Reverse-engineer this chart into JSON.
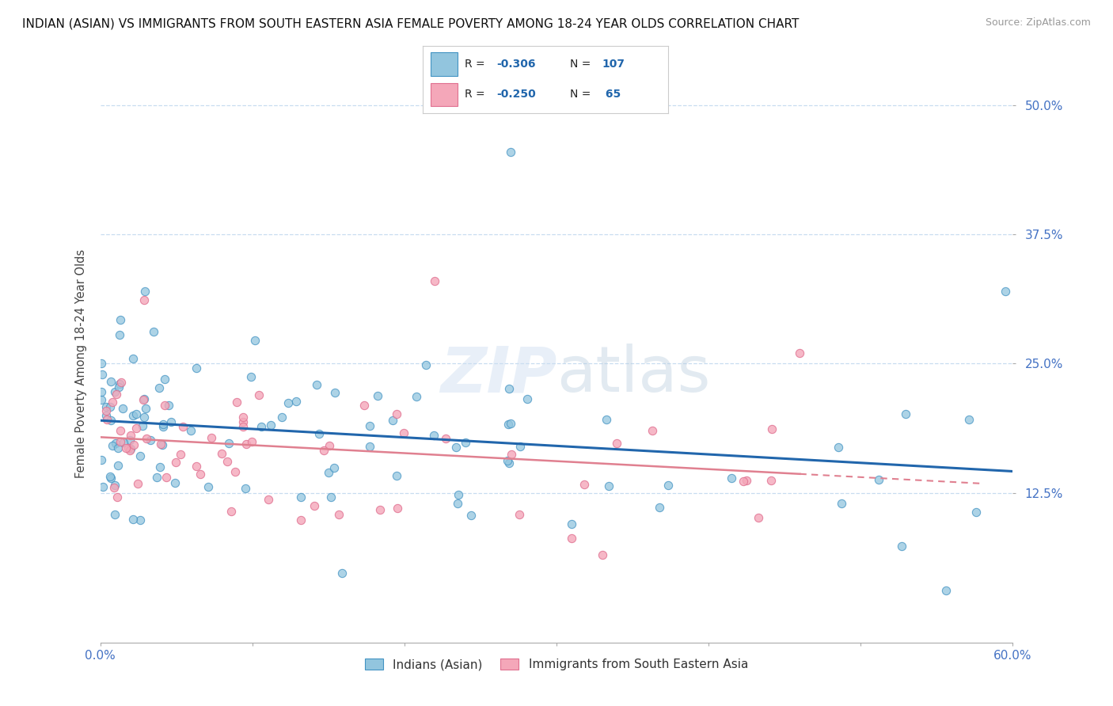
{
  "title": "INDIAN (ASIAN) VS IMMIGRANTS FROM SOUTH EASTERN ASIA FEMALE POVERTY AMONG 18-24 YEAR OLDS CORRELATION CHART",
  "source": "Source: ZipAtlas.com",
  "ylabel": "Female Poverty Among 18-24 Year Olds",
  "xlim": [
    0.0,
    0.6
  ],
  "ylim": [
    -0.02,
    0.52
  ],
  "yticks": [
    0.125,
    0.25,
    0.375,
    0.5
  ],
  "ytick_labels": [
    "12.5%",
    "25.0%",
    "37.5%",
    "50.0%"
  ],
  "xticks": [
    0.0,
    0.1,
    0.2,
    0.3,
    0.4,
    0.5,
    0.6
  ],
  "blue_color": "#92c5de",
  "blue_edge_color": "#4393c3",
  "pink_color": "#f4a7b9",
  "pink_edge_color": "#e07090",
  "blue_line_color": "#2166ac",
  "pink_line_color": "#e08090",
  "legend_r1": "-0.306",
  "legend_n1": "107",
  "legend_r2": "-0.250",
  "legend_n2": " 65",
  "label1": "Indians (Asian)",
  "label2": "Immigrants from South Eastern Asia",
  "watermark": "ZIPatlas",
  "title_fontsize": 11,
  "source_fontsize": 9
}
